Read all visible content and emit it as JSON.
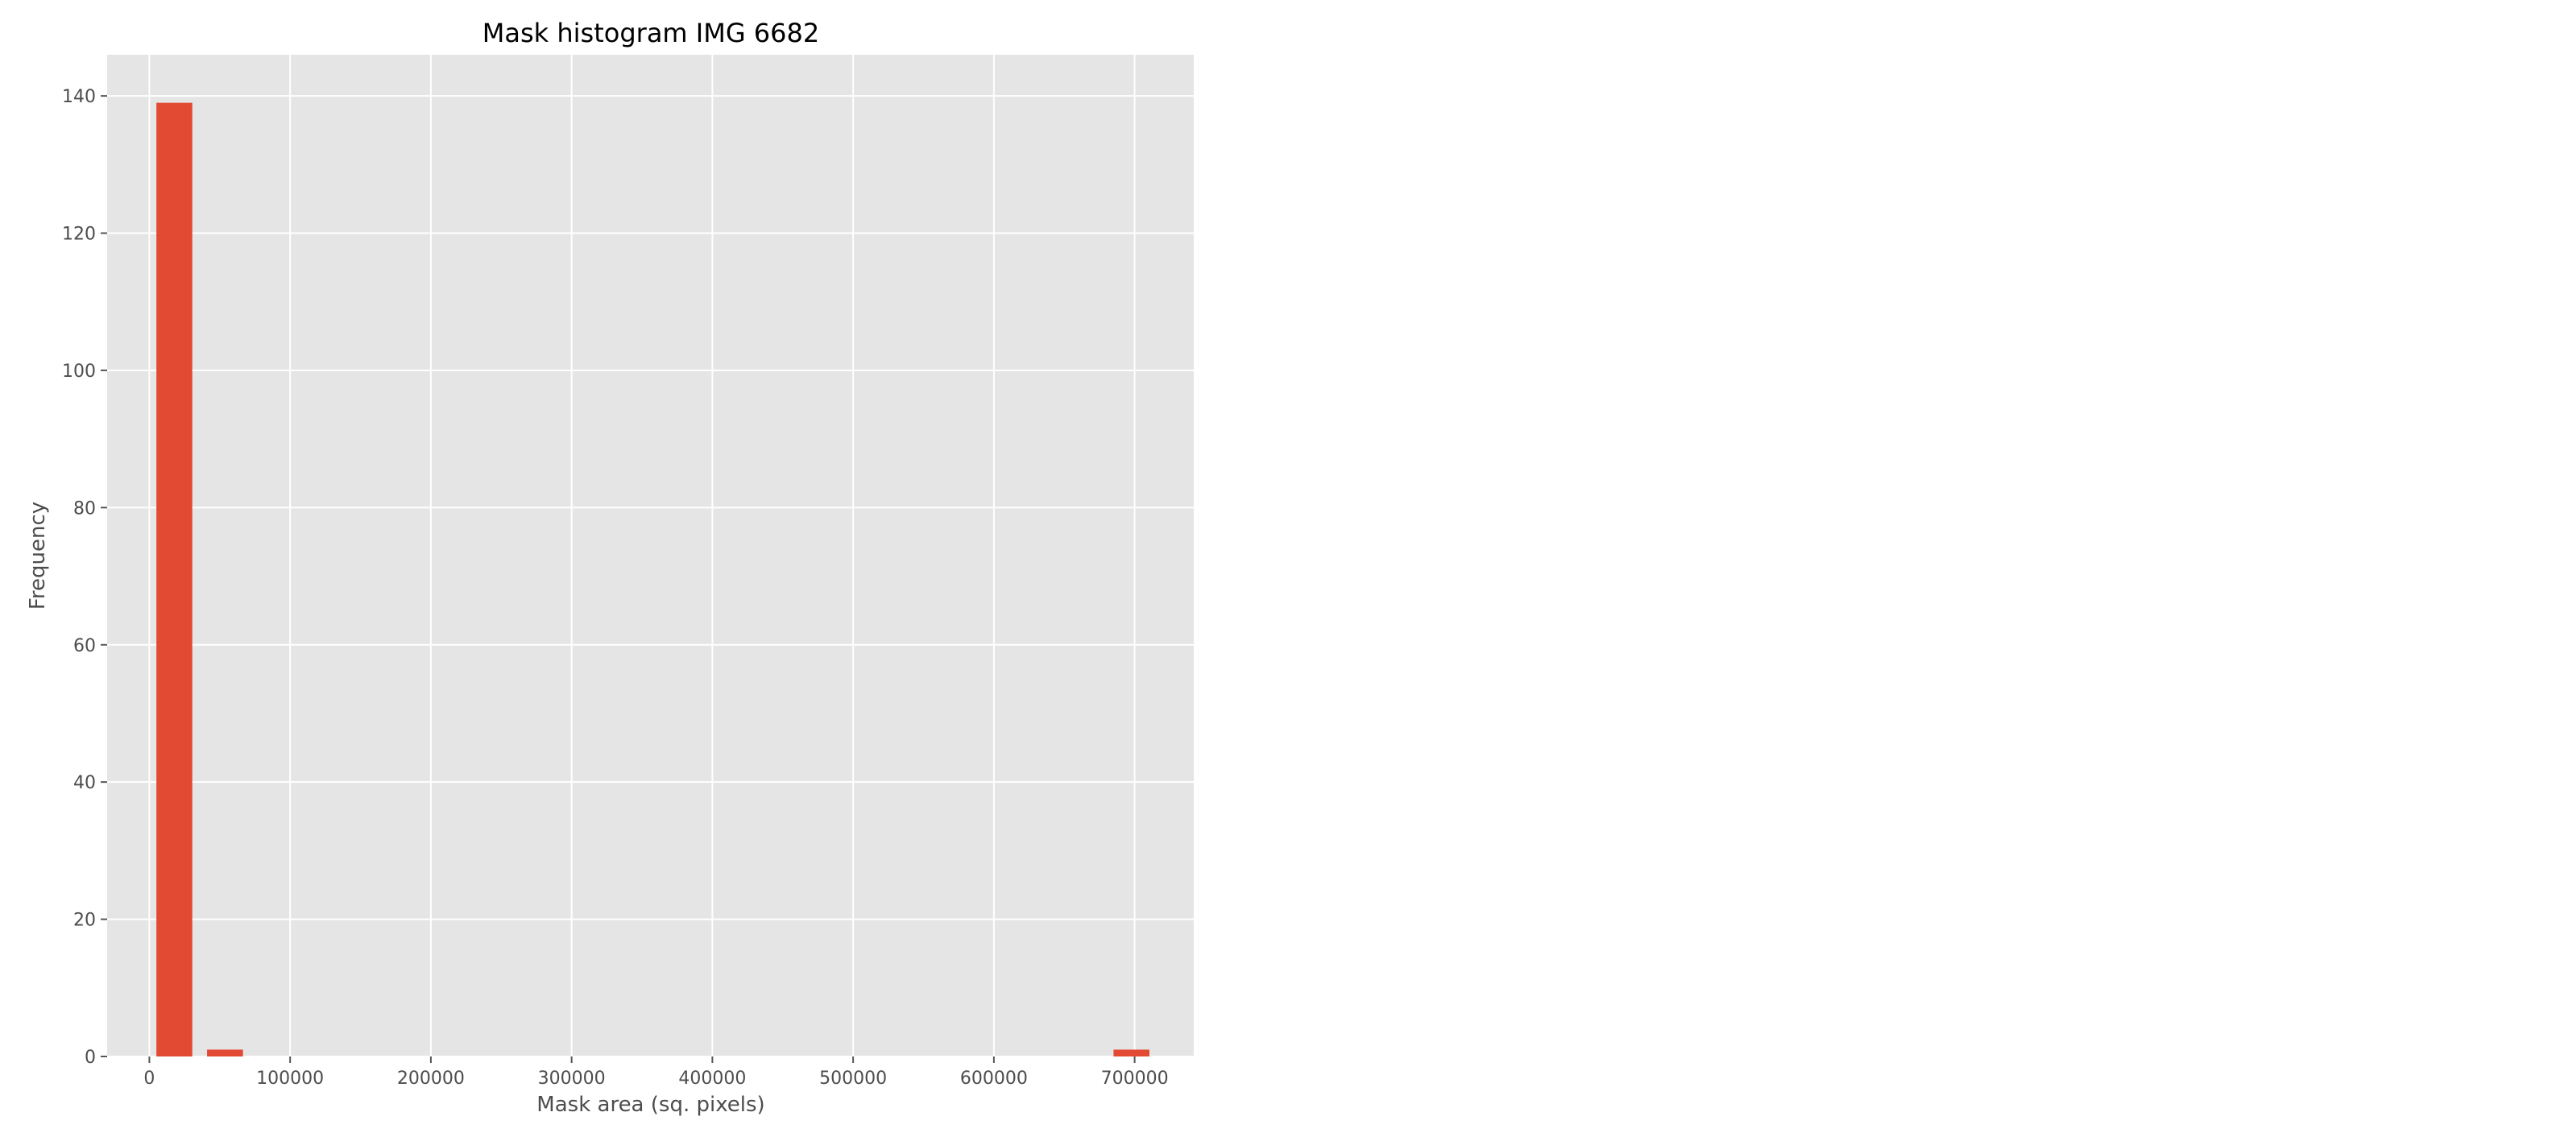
{
  "chart_data": {
    "type": "bar",
    "title": "Mask histogram IMG 6682",
    "xlabel": "Mask area (sq. pixels)",
    "ylabel": "Frequency",
    "xlim": [
      -30000,
      742000
    ],
    "ylim": [
      0,
      146
    ],
    "x_ticks": [
      0,
      100000,
      200000,
      300000,
      400000,
      500000,
      600000,
      700000
    ],
    "x_tick_labels": [
      "0",
      "100000",
      "200000",
      "300000",
      "400000",
      "500000",
      "600000",
      "700000"
    ],
    "y_ticks": [
      0,
      20,
      40,
      60,
      80,
      100,
      120,
      140
    ],
    "y_tick_labels": [
      "0",
      "20",
      "40",
      "60",
      "80",
      "100",
      "120",
      "140"
    ],
    "bins": [
      {
        "x0": 5000,
        "x1": 30500,
        "count": 139
      },
      {
        "x0": 41000,
        "x1": 66500,
        "count": 1
      },
      {
        "x0": 685000,
        "x1": 710500,
        "count": 1
      }
    ],
    "grid": true,
    "style": "ggplot",
    "colors": {
      "bar": "#E24A33",
      "plot_background": "#E5E5E5",
      "grid": "#FFFFFF"
    }
  }
}
